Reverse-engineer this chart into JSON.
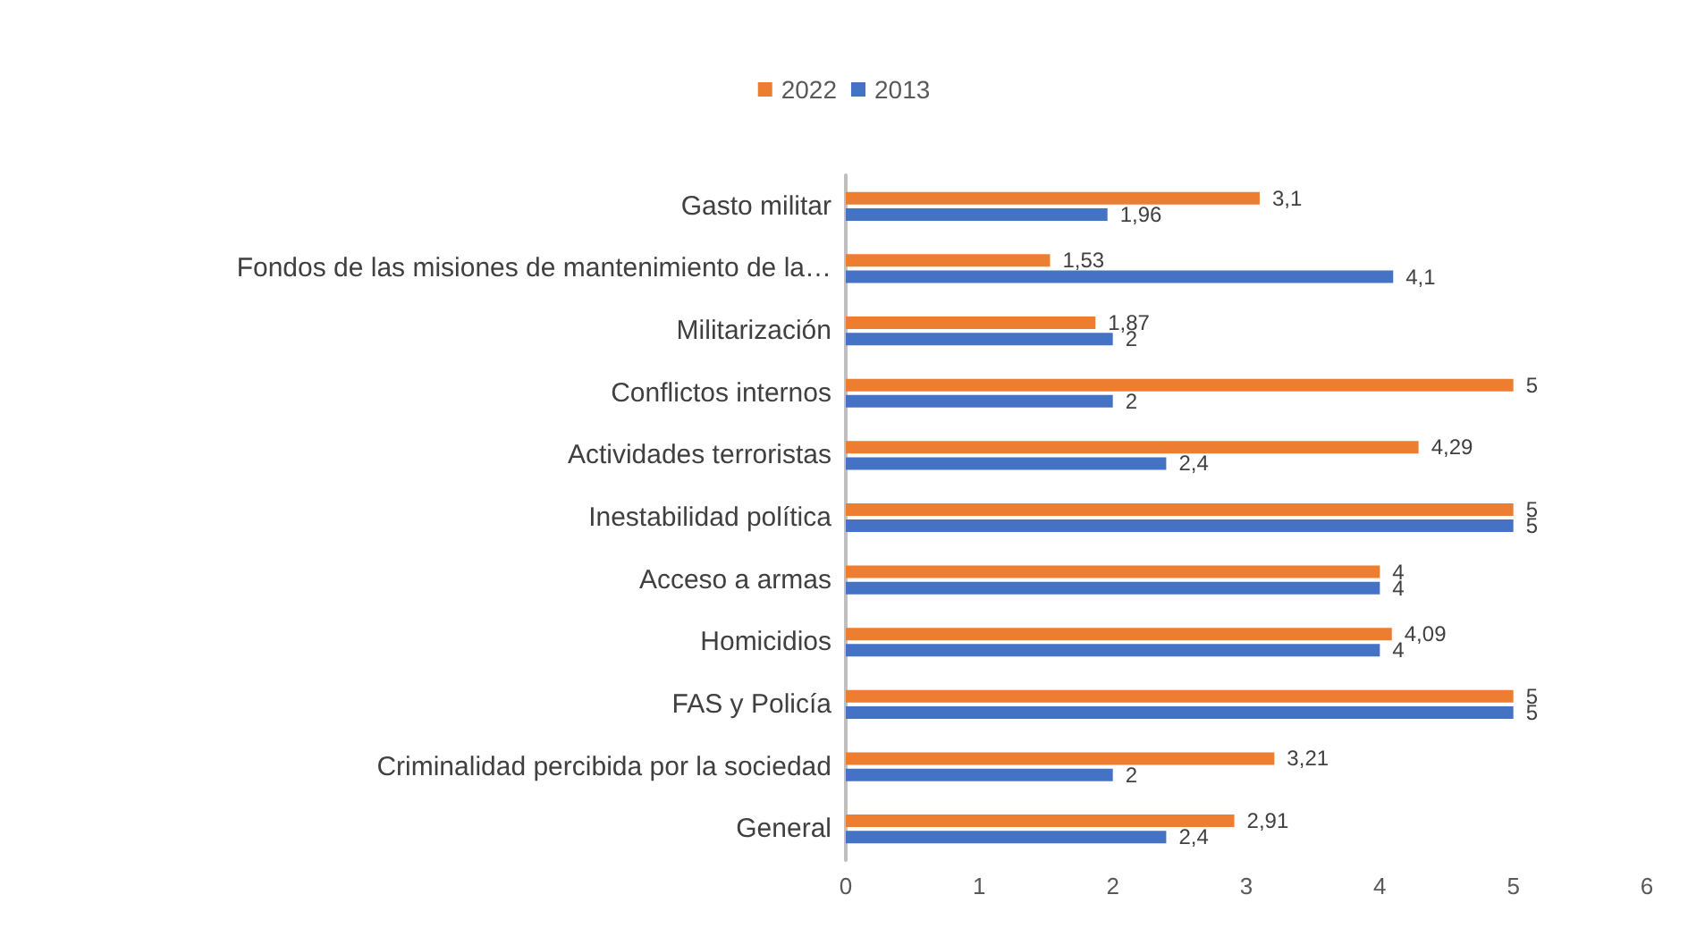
{
  "chart_data": {
    "type": "bar",
    "orientation": "horizontal",
    "categories": [
      "Gasto militar",
      "Fondos de las misiones de mantenimiento de la…",
      "Militarización",
      "Conflictos internos",
      "Actividades terroristas",
      "Inestabilidad política",
      "Acceso a armas",
      "Homicidios",
      "FAS y Policía",
      "Criminalidad percibida por la sociedad",
      "General"
    ],
    "series": [
      {
        "name": "2022",
        "color": "#ed7d31",
        "values": [
          3.1,
          1.53,
          1.87,
          5,
          4.29,
          5,
          4,
          4.09,
          5,
          3.21,
          2.91
        ],
        "value_labels": [
          "3,1",
          "1,53",
          "1,87",
          "5",
          "4,29",
          "5",
          "4",
          "4,09",
          "5",
          "3,21",
          "2,91"
        ]
      },
      {
        "name": "2013",
        "color": "#4472c4",
        "values": [
          1.96,
          4.1,
          2,
          2,
          2.4,
          5,
          4,
          4,
          5,
          2,
          2.4
        ],
        "value_labels": [
          "1,96",
          "4,1",
          "2",
          "2",
          "2,4",
          "5",
          "4",
          "4",
          "5",
          "2",
          "2,4"
        ]
      }
    ],
    "xlim": [
      0,
      6
    ],
    "xticks": [
      0,
      1,
      2,
      3,
      4,
      5,
      6
    ],
    "grid": false,
    "legend": "top"
  }
}
